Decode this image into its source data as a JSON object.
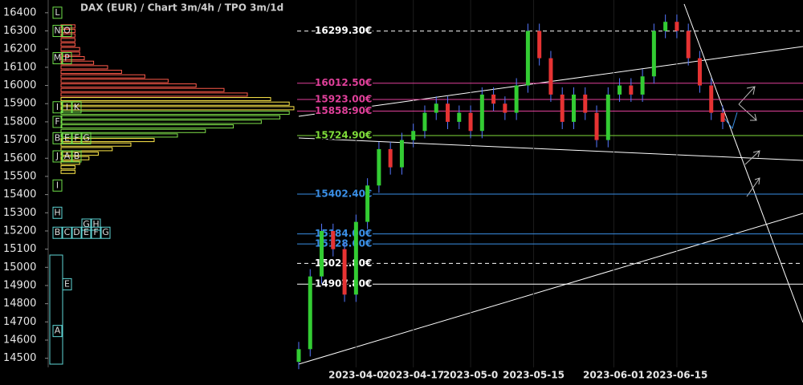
{
  "chart_data": {
    "type": "candlestick",
    "title": "DAX (EUR) /  Chart 3m/4h / TPO 3m/1d",
    "ylim": [
      14450,
      16470
    ],
    "yticks": [
      14500,
      14600,
      14700,
      14800,
      14900,
      15000,
      15100,
      15200,
      15300,
      15400,
      15500,
      15600,
      15700,
      15800,
      15900,
      16000,
      16100,
      16200,
      16300,
      16400
    ],
    "xlim": [
      0,
      37
    ],
    "xticks": [
      {
        "value": 5,
        "label": "2023-04-0"
      },
      {
        "value": 10,
        "label": "2023-04-17"
      },
      {
        "value": 15,
        "label": "2023-05-0"
      },
      {
        "value": 20.5,
        "label": "2023-05-15"
      },
      {
        "value": 27.5,
        "label": "2023-06-01"
      },
      {
        "value": 33,
        "label": "2023-06-15"
      }
    ],
    "up_color": "#33cc33",
    "down_color": "#e63333",
    "wick_color": "#5577ff",
    "open": [
      14480,
      14550,
      14950,
      15200,
      15100,
      14850,
      15250,
      15450,
      15650,
      15550,
      15700,
      15750,
      15850,
      15900,
      15800,
      15850,
      15750,
      15950,
      15900,
      15850,
      16000,
      16300,
      16150,
      15950,
      15800,
      15950,
      15850,
      15700,
      15950,
      16000,
      15950,
      16050,
      16300,
      16350,
      16300,
      16150,
      16000,
      15850
    ],
    "high": [
      14590,
      14990,
      15240,
      15240,
      15140,
      15290,
      15490,
      15690,
      15690,
      15740,
      15790,
      15890,
      15940,
      15940,
      15890,
      15890,
      15990,
      15990,
      15940,
      16040,
      16340,
      16340,
      16190,
      15990,
      15990,
      15990,
      15890,
      15990,
      16040,
      16040,
      16090,
      16340,
      16390,
      16390,
      16340,
      16190,
      16040,
      15890
    ],
    "low": [
      14440,
      14510,
      14910,
      15060,
      14810,
      14810,
      15210,
      15410,
      15510,
      15510,
      15660,
      15710,
      15810,
      15760,
      15760,
      15710,
      15710,
      15860,
      15810,
      15810,
      15960,
      16110,
      15910,
      15760,
      15760,
      15810,
      15660,
      15660,
      15910,
      15910,
      15910,
      16010,
      16260,
      16260,
      16110,
      15960,
      15810,
      15760
    ],
    "close": [
      14550,
      14950,
      15200,
      15100,
      14850,
      15250,
      15450,
      15650,
      15550,
      15700,
      15750,
      15850,
      15900,
      15800,
      15850,
      15750,
      15950,
      15900,
      15850,
      16000,
      16300,
      16150,
      15950,
      15800,
      15950,
      15850,
      15700,
      15950,
      16000,
      15950,
      16050,
      16300,
      16350,
      16300,
      16150,
      16000,
      15850,
      15800
    ],
    "levels": [
      {
        "value": 16299.3,
        "label": "16299.30€",
        "color": "#ffffff",
        "dashed": true
      },
      {
        "value": 16012.5,
        "label": "16012.50€",
        "color": "#e0409a",
        "dashed": false
      },
      {
        "value": 15923.0,
        "label": "15923.00€",
        "color": "#e0409a",
        "dashed": false
      },
      {
        "value": 15858.9,
        "label": "15858.90€",
        "color": "#e0409a",
        "dashed": false
      },
      {
        "value": 15724.9,
        "label": "15724.90€",
        "color": "#7fdc3a",
        "dashed": false
      },
      {
        "value": 15402.4,
        "label": "15402.40€",
        "color": "#3a8fe6",
        "dashed": false
      },
      {
        "value": 15184.0,
        "label": "15184.00€",
        "color": "#3a8fe6",
        "dashed": false
      },
      {
        "value": 15128.6,
        "label": "15128.60€",
        "color": "#3a8fe6",
        "dashed": false
      },
      {
        "value": 15021.8,
        "label": "15021.80€",
        "color": "#ffffff",
        "dashed": true
      },
      {
        "value": 14907.8,
        "label": "14907.80€",
        "color": "#ffffff",
        "dashed": false
      }
    ],
    "profile": {
      "prices": [
        15525,
        15550,
        15575,
        15600,
        15625,
        15650,
        15675,
        15700,
        15725,
        15750,
        15775,
        15800,
        15825,
        15850,
        15875,
        15900,
        15925,
        15950,
        15975,
        16000,
        16025,
        16050,
        16075,
        16100,
        16125,
        16150,
        16175,
        16200,
        16225,
        16250,
        16275,
        16300,
        16325
      ],
      "counts": [
        3,
        3,
        4,
        6,
        8,
        11,
        15,
        20,
        25,
        31,
        37,
        43,
        47,
        49,
        50,
        49,
        45,
        40,
        35,
        29,
        23,
        18,
        13,
        10,
        7,
        5,
        4,
        4,
        3,
        3,
        3,
        3,
        3
      ],
      "colors": [
        "#ffe94a",
        "#ffe94a",
        "#ffe94a",
        "#ffe94a",
        "#ffe94a",
        "#ffe94a",
        "#ffe94a",
        "#ffe94a",
        "#7fe04a",
        "#7fe04a",
        "#7fe04a",
        "#7fe04a",
        "#7fe04a",
        "#7fe04a",
        "#ffe94a",
        "#ffe94a",
        "#ffe94a",
        "#ff5a4a",
        "#ff5a4a",
        "#ff5a4a",
        "#ff5a4a",
        "#ff5a4a",
        "#ff5a4a",
        "#ff5a4a",
        "#ff5a4a",
        "#ff5a4a",
        "#ff5a4a",
        "#ff5a4a",
        "#ff5a4a",
        "#ff5a4a",
        "#ff5a4a",
        "#ff5a4a",
        "#ff5a4a"
      ]
    },
    "tpo_upper": [
      {
        "price": 16400,
        "letters": [
          "L"
        ]
      },
      {
        "price": 16300,
        "letters": [
          "N",
          "O"
        ]
      },
      {
        "price": 16150,
        "letters": [
          "M",
          "P"
        ]
      },
      {
        "price": 15880,
        "letters": [
          "I",
          "I",
          "K"
        ]
      },
      {
        "price": 15800,
        "letters": [
          "F"
        ]
      },
      {
        "price": 15710,
        "letters": [
          "B",
          "E",
          "F",
          "G"
        ]
      },
      {
        "price": 15610,
        "letters": [
          "J",
          "A",
          "B"
        ]
      },
      {
        "price": 15450,
        "letters": [
          "I"
        ]
      }
    ],
    "tpo_lower": [
      {
        "price": 15300,
        "letters": [
          "H"
        ]
      },
      {
        "price": 15235,
        "letters": [
          null,
          null,
          null,
          "G",
          "H"
        ]
      },
      {
        "price": 15190,
        "letters": [
          "B",
          "C",
          "D",
          "E",
          "F",
          "G"
        ]
      },
      {
        "price": 14907,
        "letters": [
          null,
          "E"
        ]
      },
      {
        "price": 14650,
        "letters": [
          "A"
        ]
      }
    ]
  }
}
